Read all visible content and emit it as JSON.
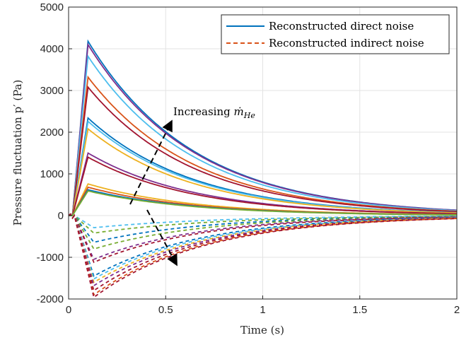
{
  "chart_data": {
    "type": "line",
    "xlabel": "Time (s)",
    "ylabel": "Pressure fluctuation p′ (Pa)",
    "xlim": [
      0,
      2
    ],
    "ylim": [
      -2000,
      5000
    ],
    "x_ticks": [
      0,
      0.5,
      1,
      1.5,
      2
    ],
    "x_tick_labels": [
      "0",
      "0.5",
      "1",
      "1.5",
      "2"
    ],
    "y_ticks": [
      -2000,
      -1000,
      0,
      1000,
      2000,
      3000,
      4000,
      5000
    ],
    "y_tick_labels": [
      "-2000",
      "-1000",
      "0",
      "1000",
      "2000",
      "3000",
      "4000",
      "5000"
    ],
    "grid": true,
    "legend": {
      "position": "top-right",
      "entries": [
        {
          "label": "Reconstructed direct noise",
          "style": "solid",
          "color": "#0072BD"
        },
        {
          "label": "Reconstructed indirect noise",
          "style": "dashed",
          "color": "#D95319"
        }
      ]
    },
    "annotation": {
      "text_prefix": "Increasing ",
      "symbol": "ṁ",
      "subscript": "He"
    },
    "direct_series": [
      {
        "color": "#0072BD",
        "peak": 4180,
        "end": 130
      },
      {
        "color": "#7E2F8E",
        "peak": 4100,
        "end": 128
      },
      {
        "color": "#4DBEEE",
        "peak": 3820,
        "end": 118
      },
      {
        "color": "#D95319",
        "peak": 3320,
        "end": 103
      },
      {
        "color": "#A2142F",
        "peak": 3080,
        "end": 95
      },
      {
        "color": "#0072BD",
        "peak": 2340,
        "end": 73
      },
      {
        "color": "#4DBEEE",
        "peak": 2260,
        "end": 70
      },
      {
        "color": "#EDB120",
        "peak": 2080,
        "end": 65
      },
      {
        "color": "#7E2F8E",
        "peak": 1500,
        "end": 47
      },
      {
        "color": "#A2142F",
        "peak": 1400,
        "end": 43
      },
      {
        "color": "#EDB120",
        "peak": 760,
        "end": 24
      },
      {
        "color": "#D95319",
        "peak": 680,
        "end": 21
      },
      {
        "color": "#0072BD",
        "peak": 620,
        "end": 19
      },
      {
        "color": "#77AC30",
        "peak": 590,
        "end": 18
      }
    ],
    "indirect_series": [
      {
        "color": "#4DBEEE",
        "trough": -290,
        "end": -15
      },
      {
        "color": "#77AC30",
        "trough": -420,
        "end": -20
      },
      {
        "color": "#0072BD",
        "trough": -640,
        "end": -25
      },
      {
        "color": "#77AC30",
        "trough": -800,
        "end": -30
      },
      {
        "color": "#7E2F8E",
        "trough": -1050,
        "end": -35
      },
      {
        "color": "#A2142F",
        "trough": -1120,
        "end": -40
      },
      {
        "color": "#0072BD",
        "trough": -1450,
        "end": -50
      },
      {
        "color": "#4DBEEE",
        "trough": -1520,
        "end": -55
      },
      {
        "color": "#EDB120",
        "trough": -1600,
        "end": -60
      },
      {
        "color": "#7E2F8E",
        "trough": -1680,
        "end": -62
      },
      {
        "color": "#A2142F",
        "trough": -1800,
        "end": -65
      },
      {
        "color": "#D95319",
        "trough": -1900,
        "end": -70
      },
      {
        "color": "#A2142F",
        "trough": -1960,
        "end": -72
      }
    ]
  }
}
